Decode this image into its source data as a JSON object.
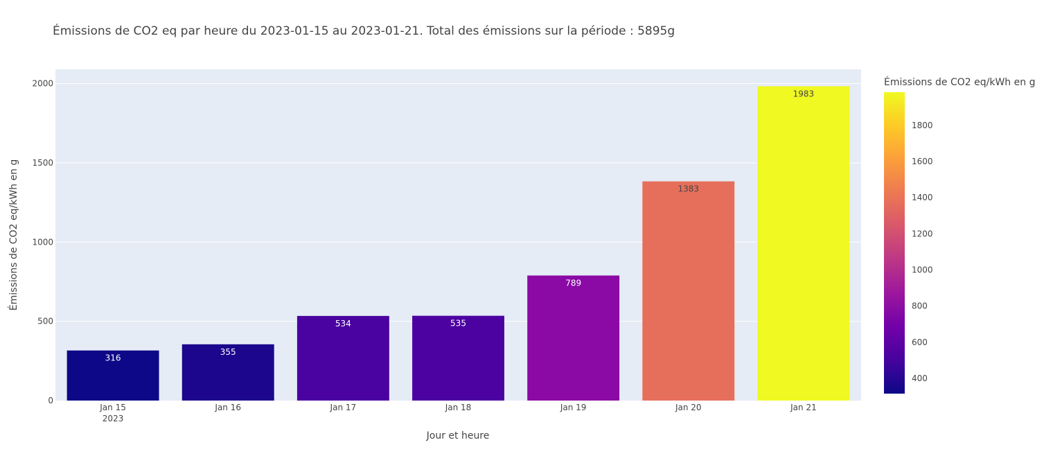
{
  "chart_data": {
    "type": "bar",
    "title": "Émissions de CO2 eq par heure du 2023-01-15 au 2023-01-21. Total des émissions sur la période : 5895g",
    "xlabel": "Jour et heure",
    "ylabel": "Émissions de CO2 eq/kWh en g",
    "categories": [
      "Jan 15",
      "Jan 16",
      "Jan 17",
      "Jan 18",
      "Jan 19",
      "Jan 20",
      "Jan 21"
    ],
    "x_sub_labels": [
      "2023",
      "",
      "",
      "",
      "",
      "",
      ""
    ],
    "values": [
      316,
      355,
      534,
      535,
      789,
      1383,
      1983
    ],
    "value_labels": [
      "316",
      "355",
      "534",
      "535",
      "789",
      "1383",
      "1983"
    ],
    "ylim": [
      0,
      2090
    ],
    "y_ticks": [
      0,
      500,
      1000,
      1500,
      2000
    ],
    "y_tick_labels": [
      "0",
      "500",
      "1000",
      "1500",
      "2000"
    ],
    "grid": true,
    "plot_background": "#e5ecf6",
    "colorscale": "plasma",
    "colorbar": {
      "title": "Émissions de CO2 eq/kWh en g",
      "range": [
        316,
        1983
      ],
      "ticks": [
        400,
        600,
        800,
        1000,
        1200,
        1400,
        1600,
        1800
      ],
      "tick_labels": [
        "400",
        "600",
        "800",
        "1000",
        "1200",
        "1400",
        "1600",
        "1800"
      ]
    },
    "colors": {
      "316": "#0d0887",
      "355": "#1b068d",
      "534": "#4a02a0",
      "535": "#4c02a1",
      "789": "#8b0aa5",
      "1383": "#e66f5c",
      "1983": "#f0f921"
    },
    "colorscale_stops": [
      "#0d0887",
      "#46039f",
      "#7201a8",
      "#9c179e",
      "#bd3786",
      "#d8576b",
      "#ed7953",
      "#fb9f3a",
      "#fdca26",
      "#f0f921"
    ]
  }
}
